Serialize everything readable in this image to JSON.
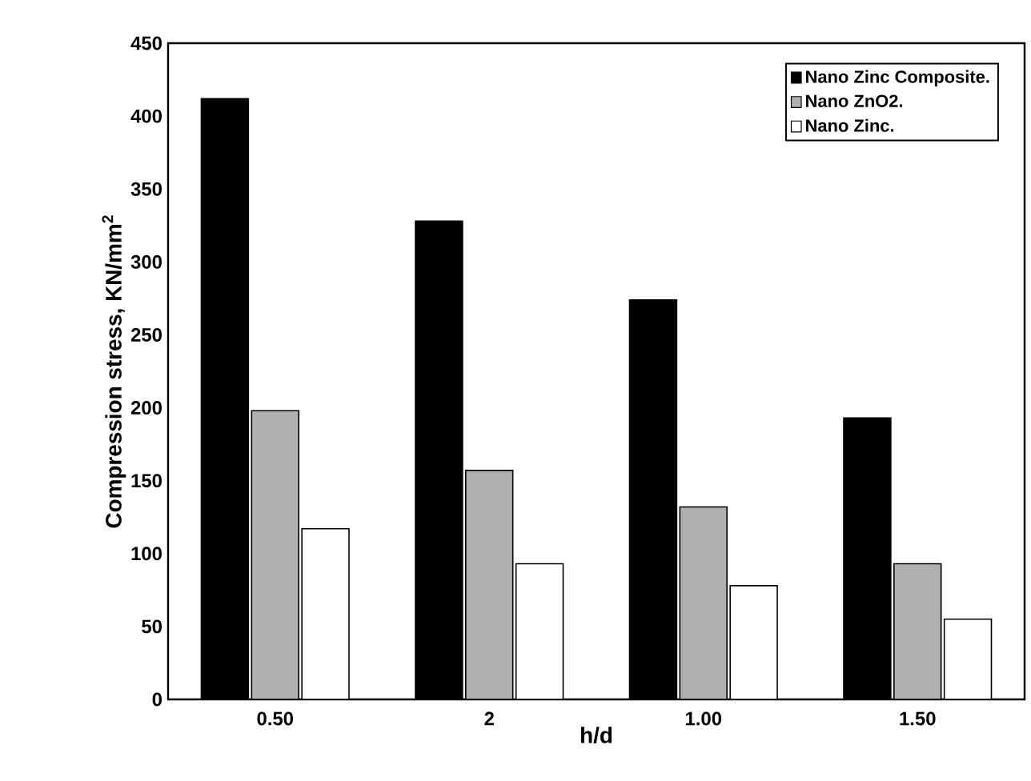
{
  "chart_data": {
    "type": "bar",
    "xlabel": "h/d",
    "ylabel": "Compression stress, KN/mm$^{2}$",
    "categories": [
      "0.50",
      "2",
      "1.00",
      "1.50"
    ],
    "series": [
      {
        "name": "Nano Zinc Composite.",
        "color": "#000000",
        "values": [
          412,
          328,
          274,
          193
        ]
      },
      {
        "name": "Nano ZnO2.",
        "color": "#b0b0b0",
        "values": [
          198,
          157,
          132,
          93
        ]
      },
      {
        "name": "Nano Zinc.",
        "color": "#ffffff",
        "values": [
          117,
          93,
          78,
          55
        ]
      }
    ],
    "ylim": [
      0,
      450
    ],
    "yticks": [
      0,
      50,
      100,
      150,
      200,
      250,
      300,
      350,
      400,
      450
    ],
    "grid": false,
    "legend": "top right"
  }
}
